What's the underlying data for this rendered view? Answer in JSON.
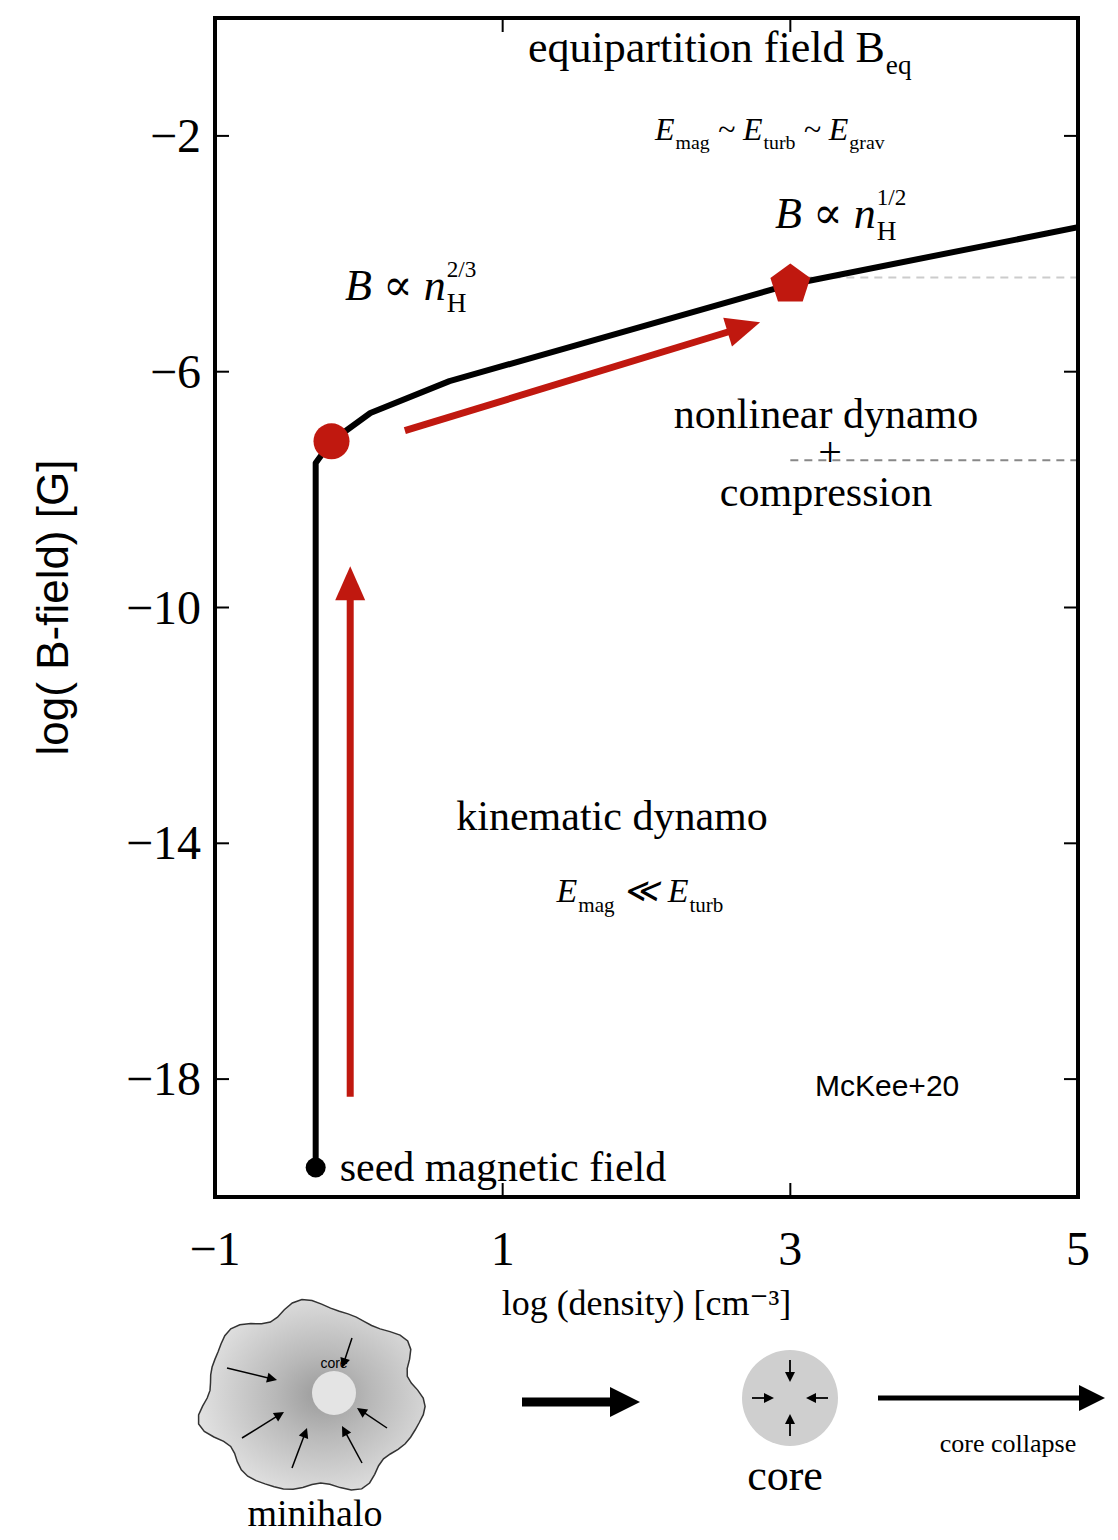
{
  "chart_data": {
    "type": "line",
    "x_label": "log (density) [cm⁻³]",
    "y_label": "log( B-field) [G]",
    "xlim": [
      -1,
      5
    ],
    "ylim": [
      -20,
      0
    ],
    "xticks": [
      {
        "value": -1,
        "label": "−1"
      },
      1,
      3,
      5
    ],
    "yticks": [
      {
        "value": -2,
        "label": "−2"
      },
      {
        "value": -6,
        "label": "−6"
      },
      {
        "value": -10,
        "label": "−10"
      },
      {
        "value": -14,
        "label": "−14"
      },
      {
        "value": -18,
        "label": "−18"
      }
    ],
    "grid": false,
    "series": [
      {
        "color": "#000000",
        "x": [
          -0.3,
          -0.3,
          -0.19,
          0.08,
          0.63,
          3.0,
          5.0
        ],
        "values": [
          -19.5,
          -7.55,
          -7.18,
          -6.7,
          -6.16,
          -4.52,
          -3.55
        ]
      }
    ],
    "points": [
      {
        "x": -0.3,
        "y": -19.5,
        "color": "#000000",
        "marker": "circle",
        "label": "seed magnetic field"
      },
      {
        "x": -0.19,
        "y": -7.18,
        "color": "#c0180f",
        "marker": "circle"
      },
      {
        "x": 3.0,
        "y": -4.52,
        "color": "#c0180f",
        "marker": "pentagon"
      }
    ],
    "arrows": [
      {
        "x0": -0.06,
        "y0": -18.3,
        "x1": -0.06,
        "y1": -9.3,
        "color": "#c0180f"
      },
      {
        "x0": 0.32,
        "y0": -7.0,
        "x1": 2.79,
        "y1": -5.16,
        "color": "#c0180f"
      }
    ],
    "reference_lines": [
      {
        "y": -4.4,
        "xmin": 3,
        "xmax": 5,
        "color": "#cccccc",
        "line_style": "dashed"
      },
      {
        "y": -7.5,
        "xmin": 3,
        "xmax": 5,
        "color": "#888888",
        "line_style": "dashed"
      }
    ],
    "annotations": [
      {
        "parts": [
          {
            "text": "equipartition field B",
            "sub": "eq"
          }
        ]
      },
      {
        "parts": [
          {
            "text": "E",
            "sub": "mag"
          },
          {
            "text": " ~ E",
            "sub": "turb"
          },
          {
            "text": " ~ E",
            "sub": "grav"
          }
        ]
      },
      {
        "parts": [
          {
            "text": "B ∝ n",
            "sub": "H",
            "sup": "1/2"
          }
        ]
      },
      {
        "parts": [
          {
            "text": "B ∝ n",
            "sub": "H",
            "sup": "2/3"
          }
        ]
      },
      {
        "parts": [
          {
            "text": "nonlinear dynamo"
          }
        ]
      },
      {
        "parts": [
          {
            "text": "+"
          }
        ]
      },
      {
        "parts": [
          {
            "text": "compression"
          }
        ]
      },
      {
        "parts": [
          {
            "text": "kinematic dynamo"
          }
        ]
      },
      {
        "parts": [
          {
            "text": "E",
            "sub": "mag"
          },
          {
            "text": " ≪ E",
            "sub": "turb"
          }
        ]
      },
      {
        "parts": [
          {
            "text": "McKee+20"
          }
        ]
      }
    ]
  },
  "diagram": {
    "stages": [
      "minihalo",
      "core",
      "core collapse"
    ],
    "inner_label": "core"
  }
}
